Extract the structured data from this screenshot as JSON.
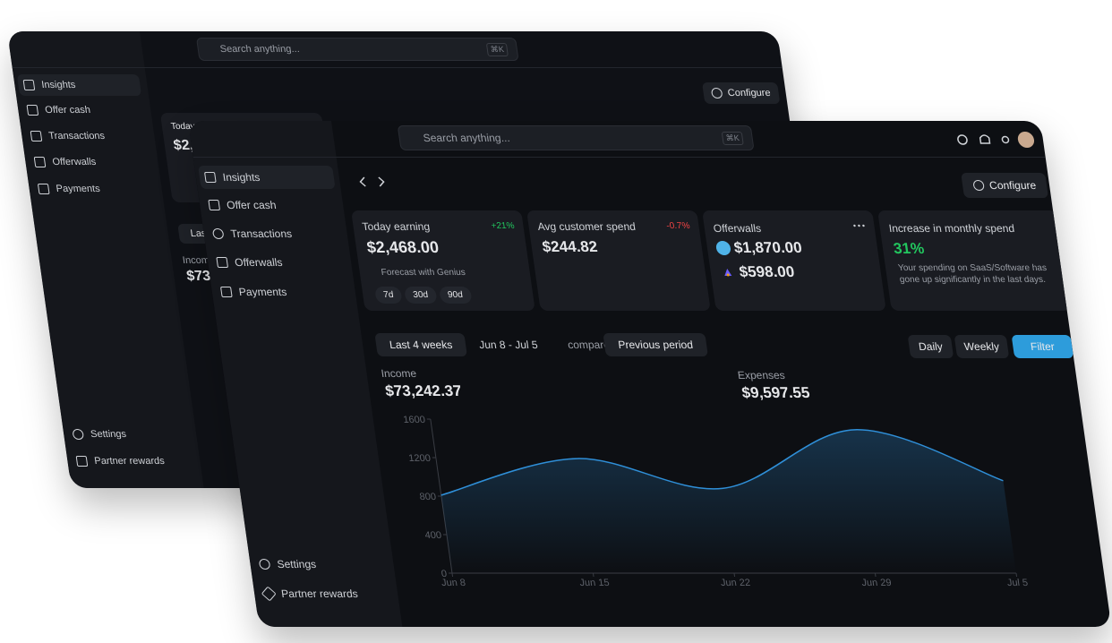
{
  "search_placeholder": "Search anything...",
  "shortcut": "⌘K",
  "sidebar": {
    "items": [
      "Insights",
      "Offer cash",
      "Transactions",
      "Offerwalls",
      "Payments"
    ],
    "footer": [
      "Settings",
      "Partner rewards"
    ]
  },
  "configure": "Configure",
  "cards": [
    {
      "title": "Today earning",
      "change": "+21%",
      "value": "$2,468.00",
      "forecast": "Forecast with Genius",
      "ranges": [
        "7d",
        "30d",
        "90d"
      ]
    },
    {
      "title": "Avg customer spend",
      "change": "-0.7%",
      "value": "$244.82"
    },
    {
      "title": "Offerwalls",
      "amounts": [
        "$1,870.00",
        "$598.00"
      ]
    },
    {
      "title": "Increase in monthly spend",
      "value": "31%",
      "note": "Your spending on SaaS/Software has gone up significantly in the last days."
    }
  ],
  "filters": {
    "period": "Last 4 weeks",
    "range": "Jun 8 - Jul 5",
    "compared": "compared to",
    "comparison": "Previous period",
    "views": [
      "Daily",
      "Weekly"
    ],
    "filter": "Filter"
  },
  "income": {
    "label": "Income",
    "value": "$73,242.37"
  },
  "expenses": {
    "label": "Expenses",
    "value": "$9,597.55"
  },
  "chart_data": {
    "type": "area",
    "x": [
      "Jun 8",
      "Jun 15",
      "Jun 22",
      "Jun 29",
      "Jul 5"
    ],
    "values": [
      810,
      1190,
      880,
      1490,
      960
    ],
    "ylim": [
      0,
      1600
    ],
    "yticks": [
      0,
      400,
      800,
      1200,
      1600
    ],
    "color": "#2f8fd8"
  }
}
